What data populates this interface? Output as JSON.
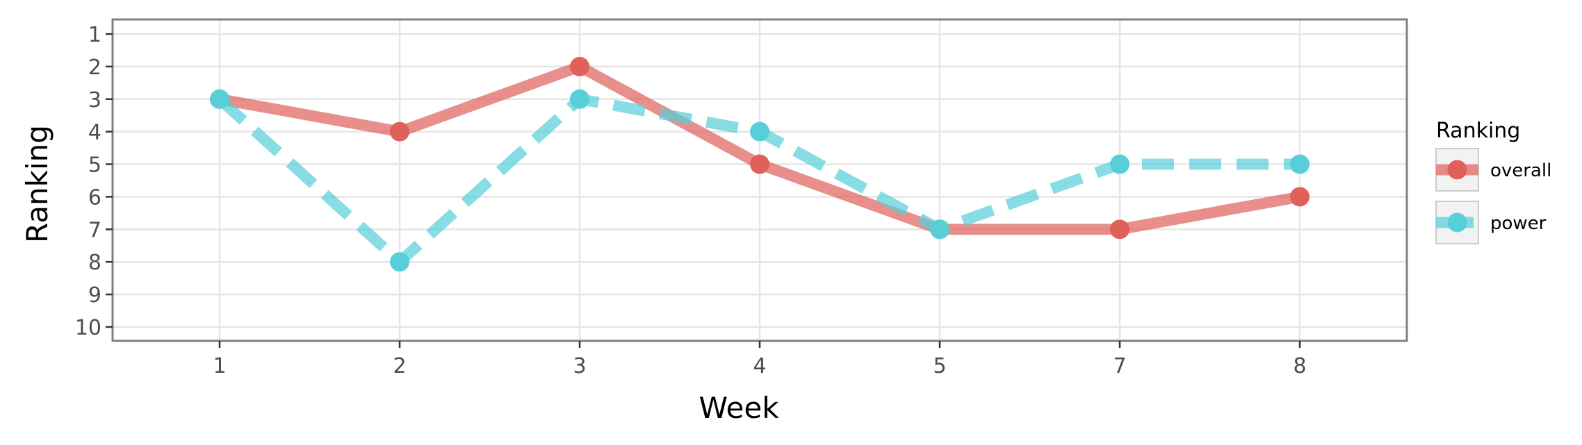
{
  "chart_data": {
    "type": "line",
    "xlabel": "Week",
    "ylabel": "Ranking",
    "categories": [
      "1",
      "2",
      "3",
      "4",
      "5",
      "7",
      "8"
    ],
    "ylim": [
      10,
      1
    ],
    "y_reversed": true,
    "y_ticks": [
      "1",
      "2",
      "3",
      "4",
      "5",
      "6",
      "7",
      "8",
      "9",
      "10"
    ],
    "grid": true,
    "legend": {
      "title": "Ranking",
      "position": "right"
    },
    "series": [
      {
        "name": "overall",
        "values": [
          3,
          4,
          2,
          5,
          7,
          7,
          6
        ],
        "color": "#e0605a",
        "line_style": "solid"
      },
      {
        "name": "power",
        "values": [
          3,
          8,
          3,
          4,
          7,
          5,
          5
        ],
        "color": "#56cfd9",
        "line_style": "dashed"
      }
    ]
  }
}
